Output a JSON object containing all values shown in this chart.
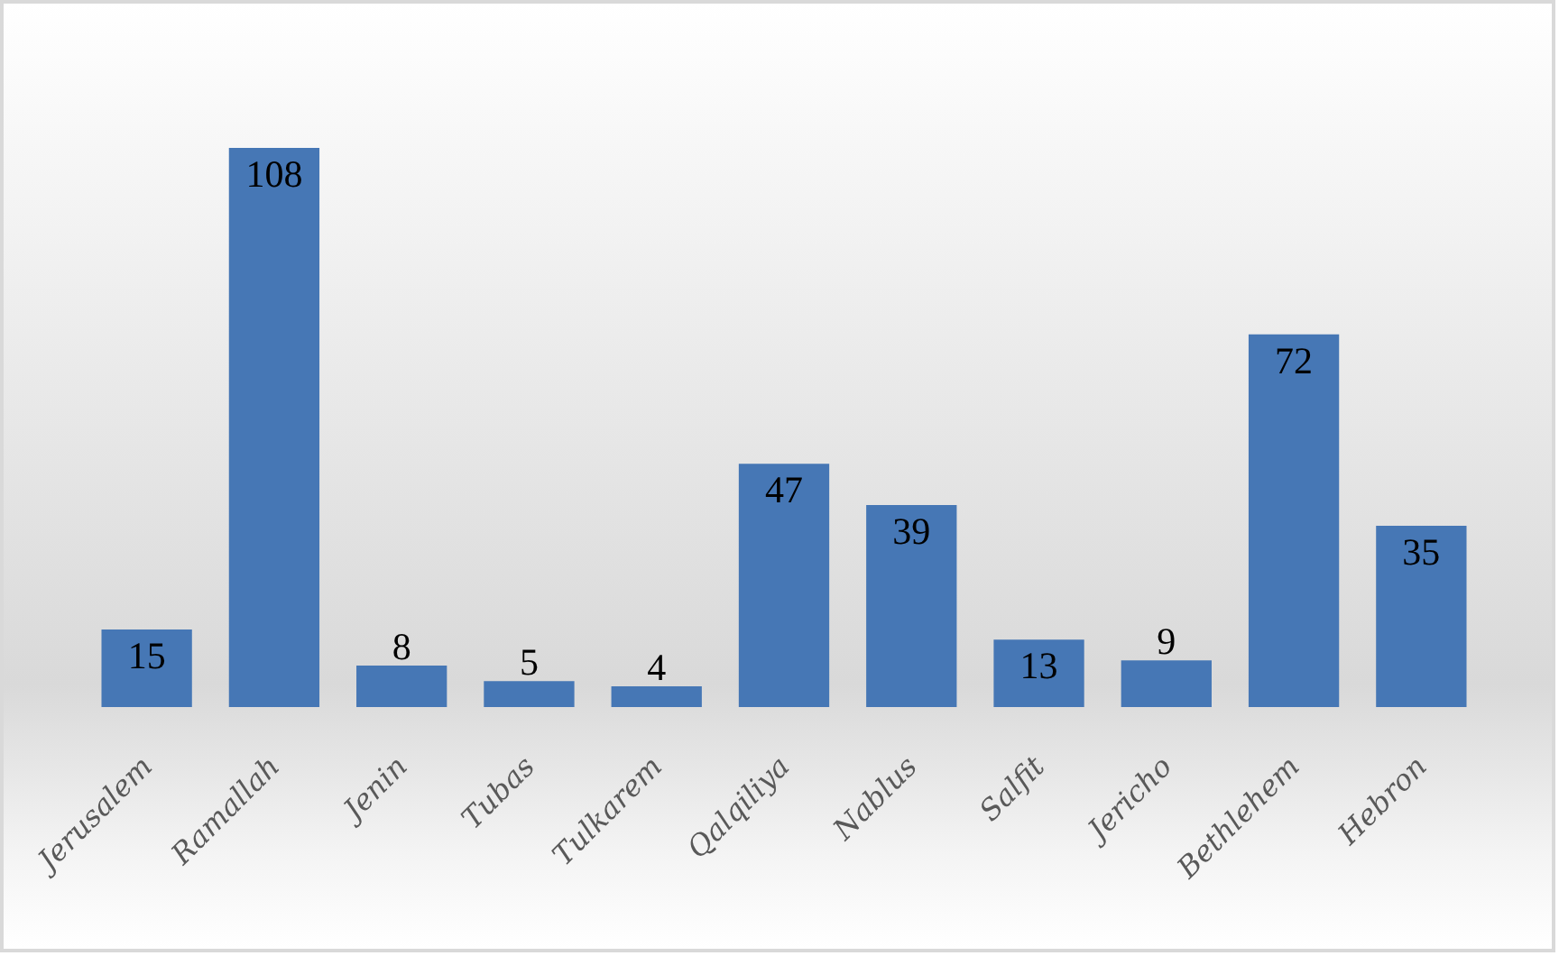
{
  "chart_data": {
    "type": "bar",
    "categories": [
      "Jerusalem",
      "Ramallah",
      "Jenin",
      "Tubas",
      "Tulkarem",
      "Qalqiliya",
      "Nablus",
      "Salfit",
      "Jericho",
      "Bethlehem",
      "Hebron"
    ],
    "values": [
      15,
      108,
      8,
      5,
      4,
      47,
      39,
      13,
      9,
      72,
      35
    ],
    "color": "#4677b5",
    "data_labels": true
  }
}
